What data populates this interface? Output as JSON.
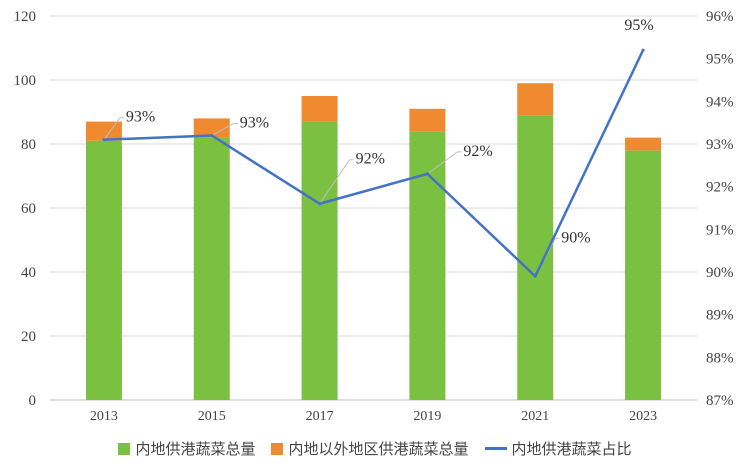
{
  "chart_data": {
    "type": "bar+line",
    "title": "",
    "categories": [
      "2013",
      "2015",
      "2017",
      "2019",
      "2021",
      "2023"
    ],
    "series": [
      {
        "name": "内地供港蔬菜总量",
        "type": "stacked-bar",
        "axis": "left",
        "color": "#7ac142",
        "values": [
          81,
          82,
          87,
          84,
          89,
          78
        ]
      },
      {
        "name": "内地以外地区供港蔬菜总量",
        "type": "stacked-bar",
        "axis": "left",
        "color": "#f08a30",
        "values": [
          6,
          6,
          8,
          7,
          10,
          4
        ]
      },
      {
        "name": "内地供港蔬菜占比",
        "type": "line",
        "axis": "right",
        "color": "#4472c4",
        "values": [
          93.1,
          93.2,
          91.6,
          92.3,
          89.9,
          95.2
        ]
      }
    ],
    "data_labels": [
      "93%",
      "93%",
      "92%",
      "92%",
      "90%",
      "95%"
    ],
    "left_axis": {
      "min": 0,
      "max": 120,
      "step": 20,
      "ticks": [
        "0",
        "20",
        "40",
        "60",
        "80",
        "100",
        "120"
      ]
    },
    "right_axis": {
      "min": 87,
      "max": 96,
      "step": 1,
      "ticks": [
        "87%",
        "88%",
        "89%",
        "90%",
        "91%",
        "92%",
        "93%",
        "94%",
        "95%",
        "96%"
      ]
    },
    "grid": true,
    "legend_position": "bottom"
  },
  "legend": {
    "items": [
      {
        "label": "内地供港蔬菜总量",
        "kind": "box",
        "color": "#7ac142"
      },
      {
        "label": "内地以外地区供港蔬菜总量",
        "kind": "box",
        "color": "#f08a30"
      },
      {
        "label": "内地供港蔬菜占比",
        "kind": "line",
        "color": "#4472c4"
      }
    ]
  }
}
